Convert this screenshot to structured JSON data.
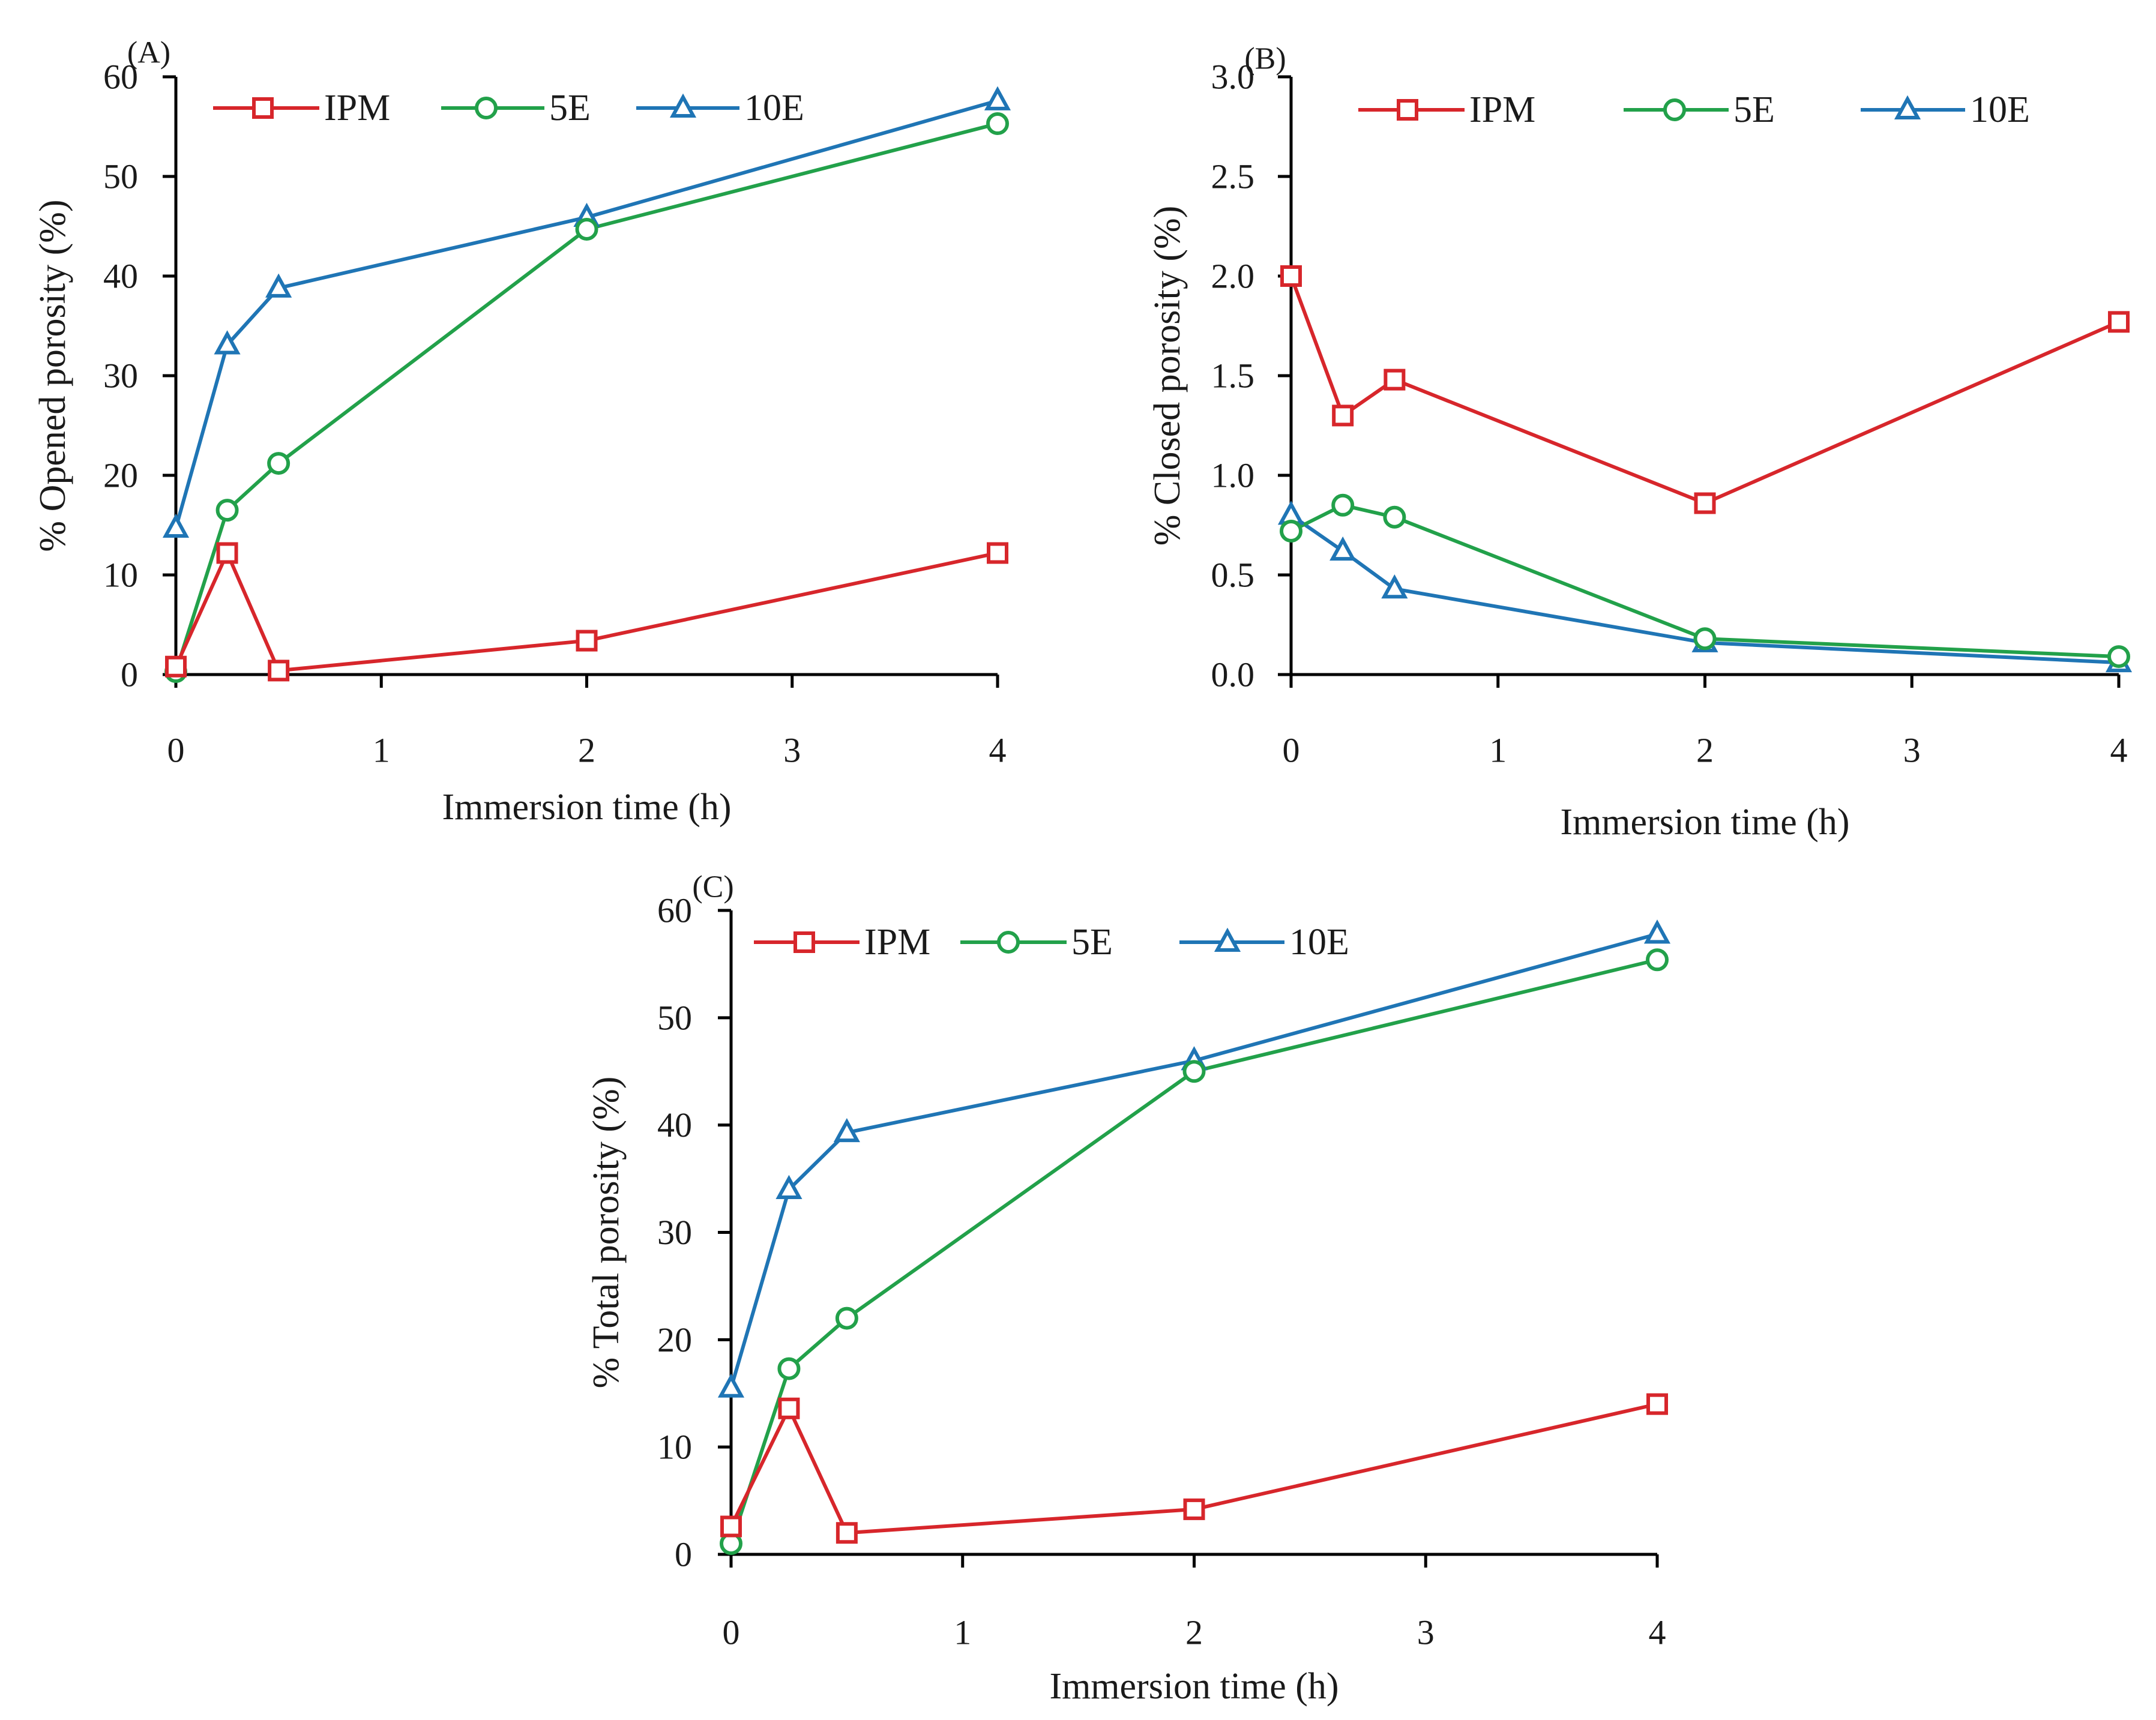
{
  "chart_data": [
    {
      "id": "A",
      "type": "line",
      "panel_label": "(A)",
      "xlabel": "Immersion time (h)",
      "ylabel": "% Opened porosity (%)",
      "xlim": [
        0,
        4
      ],
      "ylim": [
        0,
        60
      ],
      "xticks": [
        0,
        1,
        2,
        3,
        4
      ],
      "yticks": [
        0,
        10,
        20,
        30,
        40,
        50,
        60
      ],
      "ytick_labels": [
        "0",
        "10",
        "20",
        "30",
        "40",
        "50",
        "60"
      ],
      "legend_position": "top",
      "x": [
        0,
        0.25,
        0.5,
        2,
        4
      ],
      "series": [
        {
          "name": "IPM",
          "marker": "square",
          "color": "#d7262b",
          "values": [
            0.8,
            12.2,
            0.4,
            3.4,
            12.2
          ]
        },
        {
          "name": "5E",
          "marker": "circle",
          "color": "#22a14a",
          "values": [
            0.3,
            16.5,
            21.2,
            44.7,
            55.3
          ]
        },
        {
          "name": "10E",
          "marker": "triangle",
          "color": "#1f75b5",
          "values": [
            14.7,
            33.1,
            38.8,
            45.9,
            57.6
          ]
        }
      ]
    },
    {
      "id": "B",
      "type": "line",
      "panel_label": "(B)",
      "xlabel": "Immersion time (h)",
      "ylabel": "% Closed porosity (%)",
      "xlim": [
        0,
        4
      ],
      "ylim": [
        0,
        3
      ],
      "xticks": [
        0,
        1,
        2,
        3,
        4
      ],
      "yticks": [
        0,
        0.5,
        1,
        1.5,
        2,
        2.5,
        3
      ],
      "ytick_labels": [
        "0.0",
        "0.5",
        "1.0",
        "1.5",
        "2.0",
        "2.5",
        "3.0"
      ],
      "legend_position": "top",
      "x": [
        0,
        0.25,
        0.5,
        2,
        4
      ],
      "series": [
        {
          "name": "IPM",
          "marker": "square",
          "color": "#d7262b",
          "values": [
            2.0,
            1.3,
            1.48,
            0.86,
            1.77
          ]
        },
        {
          "name": "5E",
          "marker": "circle",
          "color": "#22a14a",
          "values": [
            0.72,
            0.85,
            0.79,
            0.18,
            0.09
          ]
        },
        {
          "name": "10E",
          "marker": "triangle",
          "color": "#1f75b5",
          "values": [
            0.8,
            0.62,
            0.43,
            0.16,
            0.06
          ]
        }
      ]
    },
    {
      "id": "C",
      "type": "line",
      "panel_label": "(C)",
      "xlabel": "Immersion time (h)",
      "ylabel": "% Total porosity (%)",
      "xlim": [
        0,
        4
      ],
      "ylim": [
        0,
        60
      ],
      "xticks": [
        0,
        1,
        2,
        3,
        4
      ],
      "yticks": [
        0,
        10,
        20,
        30,
        40,
        50,
        60
      ],
      "ytick_labels": [
        "0",
        "10",
        "20",
        "30",
        "40",
        "50",
        "60"
      ],
      "legend_position": "top",
      "x": [
        0,
        0.25,
        0.5,
        2,
        4
      ],
      "series": [
        {
          "name": "IPM",
          "marker": "square",
          "color": "#d7262b",
          "values": [
            2.6,
            13.6,
            2.0,
            4.2,
            14.0
          ]
        },
        {
          "name": "5E",
          "marker": "circle",
          "color": "#22a14a",
          "values": [
            1.0,
            17.3,
            22.0,
            45.0,
            55.4
          ]
        },
        {
          "name": "10E",
          "marker": "triangle",
          "color": "#1f75b5",
          "values": [
            15.5,
            34.0,
            39.3,
            46.0,
            57.8
          ]
        }
      ]
    }
  ]
}
